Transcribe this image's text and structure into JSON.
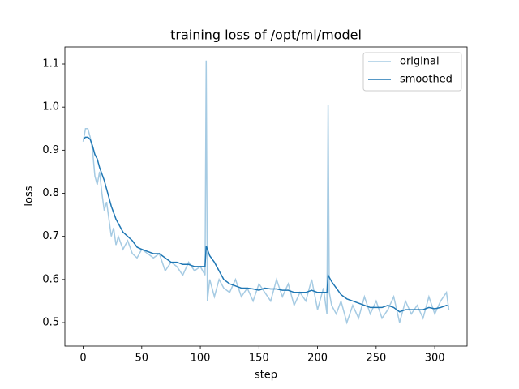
{
  "chart_data": {
    "type": "line",
    "title": "training loss of /opt/ml/model",
    "x_label": "step",
    "y_label": "loss",
    "x": [
      0,
      2,
      4,
      6,
      8,
      10,
      12,
      14,
      16,
      18,
      20,
      22,
      24,
      26,
      28,
      30,
      34,
      38,
      42,
      46,
      50,
      55,
      60,
      65,
      70,
      75,
      80,
      85,
      90,
      95,
      100,
      104,
      105,
      106,
      108,
      112,
      116,
      120,
      125,
      130,
      135,
      140,
      145,
      150,
      155,
      160,
      165,
      170,
      175,
      180,
      185,
      190,
      195,
      200,
      205,
      208,
      209,
      210,
      212,
      216,
      220,
      225,
      230,
      235,
      240,
      245,
      250,
      255,
      260,
      265,
      270,
      275,
      280,
      285,
      290,
      295,
      300,
      305,
      310,
      312
    ],
    "series": [
      {
        "name": "original",
        "color": "#a6cbe3",
        "values": [
          0.92,
          0.95,
          0.95,
          0.93,
          0.9,
          0.84,
          0.82,
          0.85,
          0.8,
          0.76,
          0.78,
          0.74,
          0.7,
          0.72,
          0.68,
          0.7,
          0.67,
          0.69,
          0.66,
          0.65,
          0.67,
          0.66,
          0.65,
          0.66,
          0.62,
          0.64,
          0.63,
          0.61,
          0.64,
          0.62,
          0.63,
          0.61,
          1.108,
          0.55,
          0.6,
          0.56,
          0.6,
          0.58,
          0.57,
          0.6,
          0.56,
          0.58,
          0.55,
          0.59,
          0.57,
          0.55,
          0.6,
          0.56,
          0.59,
          0.54,
          0.57,
          0.55,
          0.6,
          0.53,
          0.58,
          0.52,
          1.005,
          0.57,
          0.54,
          0.52,
          0.55,
          0.5,
          0.54,
          0.51,
          0.56,
          0.52,
          0.55,
          0.51,
          0.53,
          0.56,
          0.5,
          0.55,
          0.52,
          0.54,
          0.51,
          0.56,
          0.52,
          0.55,
          0.57,
          0.53
        ]
      },
      {
        "name": "smoothed",
        "color": "#1f77b4",
        "values": [
          0.925,
          0.93,
          0.93,
          0.925,
          0.91,
          0.89,
          0.88,
          0.86,
          0.845,
          0.83,
          0.81,
          0.79,
          0.77,
          0.755,
          0.74,
          0.73,
          0.71,
          0.7,
          0.69,
          0.675,
          0.67,
          0.665,
          0.66,
          0.66,
          0.65,
          0.64,
          0.64,
          0.635,
          0.635,
          0.63,
          0.63,
          0.63,
          0.678,
          0.67,
          0.655,
          0.64,
          0.62,
          0.6,
          0.59,
          0.585,
          0.58,
          0.58,
          0.578,
          0.575,
          0.58,
          0.578,
          0.578,
          0.575,
          0.575,
          0.57,
          0.57,
          0.57,
          0.575,
          0.57,
          0.57,
          0.57,
          0.61,
          0.605,
          0.595,
          0.58,
          0.565,
          0.555,
          0.55,
          0.545,
          0.54,
          0.535,
          0.535,
          0.535,
          0.54,
          0.535,
          0.525,
          0.53,
          0.53,
          0.53,
          0.53,
          0.535,
          0.532,
          0.535,
          0.54,
          0.538
        ]
      }
    ],
    "xlim": [
      -15.6,
      327.6
    ],
    "xticks": [
      0,
      50,
      100,
      150,
      200,
      250,
      300
    ],
    "ylim": [
      0.4455,
      1.1395
    ],
    "yticks": [
      0.5,
      0.6,
      0.7,
      0.8,
      0.9,
      {
        "value": 1,
        "label": "1.0"
      },
      1.1
    ],
    "grid": false,
    "legend": "upper right"
  }
}
